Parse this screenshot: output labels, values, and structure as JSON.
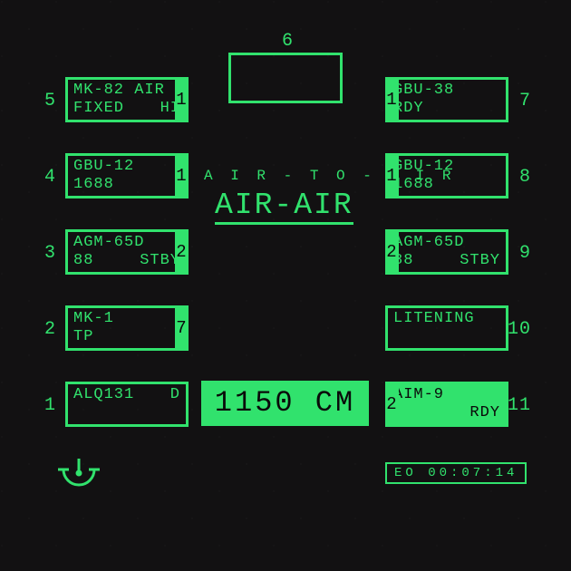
{
  "colors": {
    "crt": "#31e26d",
    "bg": "#121112",
    "dark": "#0a0a0a"
  },
  "top": {
    "station": "6"
  },
  "mode": {
    "sub": "A I R - T O - A I R",
    "main": "AIR-AIR"
  },
  "cm": {
    "text": "1150 CM"
  },
  "eo": {
    "text": "EO 00:07:14"
  },
  "left": [
    {
      "outer": "5",
      "inner": "1",
      "l1a": "MK-82 AIR",
      "l1b": "",
      "l2a": "FIXED",
      "l2b": "HI",
      "selected": false
    },
    {
      "outer": "4",
      "inner": "1",
      "l1a": "GBU-12",
      "l1b": "",
      "l2a": "1688",
      "l2b": "",
      "selected": false
    },
    {
      "outer": "3",
      "inner": "2",
      "l1a": "AGM-65D",
      "l1b": "",
      "l2a": "88",
      "l2b": "STBY",
      "selected": false
    },
    {
      "outer": "2",
      "inner": "7",
      "l1a": "MK-1",
      "l1b": "",
      "l2a": "TP",
      "l2b": "",
      "selected": false
    },
    {
      "outer": "1",
      "inner": "",
      "l1a": "ALQ131",
      "l1b": "D",
      "l2a": "",
      "l2b": "",
      "selected": false
    }
  ],
  "right": [
    {
      "outer": "7",
      "inner": "1",
      "l1a": "GBU-38",
      "l1b": "",
      "l2a": "RDY",
      "l2b": "",
      "selected": false
    },
    {
      "outer": "8",
      "inner": "1",
      "l1a": "GBU-12",
      "l1b": "",
      "l2a": "1688",
      "l2b": "",
      "selected": false
    },
    {
      "outer": "9",
      "inner": "2",
      "l1a": "AGM-65D",
      "l1b": "",
      "l2a": "88",
      "l2b": "STBY",
      "selected": false
    },
    {
      "outer": "10",
      "inner": "",
      "l1a": "LITENING",
      "l1b": "",
      "l2a": "",
      "l2b": "",
      "selected": false
    },
    {
      "outer": "11",
      "inner": "2",
      "l1a": "AIM-9",
      "l1b": "",
      "l2a": "",
      "l2b": "RDY",
      "selected": true
    }
  ],
  "layout": {
    "leftX": 72,
    "rightX": 425,
    "topY": 85,
    "gap": 84
  }
}
